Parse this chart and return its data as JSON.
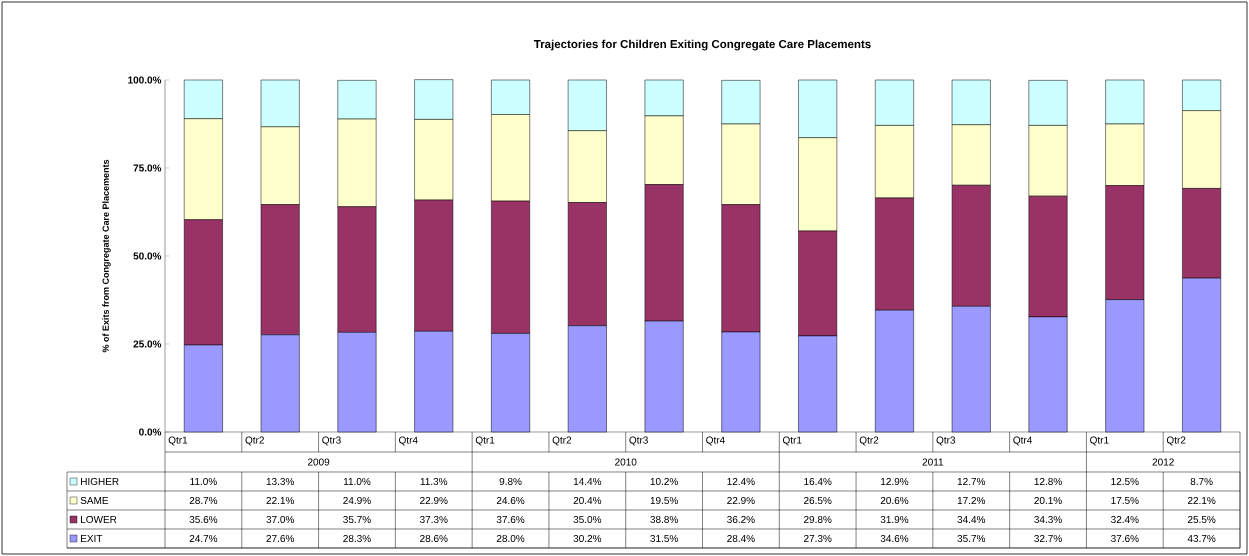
{
  "chart_data": {
    "type": "bar",
    "stacked": true,
    "title": "Trajectories for Children Exiting Congregate Care Placements",
    "ylabel": "% of Exits from Congregate Care Placements",
    "categories": [
      "Qtr1",
      "Qtr2",
      "Qtr3",
      "Qtr4",
      "Qtr1",
      "Qtr2",
      "Qtr3",
      "Qtr4",
      "Qtr1",
      "Qtr2",
      "Qtr3",
      "Qtr4",
      "Qtr1",
      "Qtr2"
    ],
    "annotations": [
      "2009",
      "2010",
      "2011",
      "2012"
    ],
    "ylim": [
      0,
      100
    ],
    "yticks": [
      {
        "value": 0,
        "label": "0.0%"
      },
      {
        "value": 25,
        "label": "25.0%"
      },
      {
        "value": 50,
        "label": "50.0%"
      },
      {
        "value": 75,
        "label": "75.0%"
      },
      {
        "value": 100,
        "label": "100.0%"
      }
    ],
    "legend": "bottom left",
    "series": [
      {
        "name": "EXIT",
        "color": "#9999ff",
        "values": [
          24.7,
          27.6,
          28.3,
          28.6,
          28.0,
          30.2,
          31.5,
          28.4,
          27.3,
          34.6,
          35.7,
          32.7,
          37.6,
          43.7
        ],
        "value_labels": [
          "24.7%",
          "27.6%",
          "28.3%",
          "28.6%",
          "28.0%",
          "30.2%",
          "31.5%",
          "28.4%",
          "27.3%",
          "34.6%",
          "35.7%",
          "32.7%",
          "37.6%",
          "43.7%"
        ]
      },
      {
        "name": "LOWER",
        "color": "#993366",
        "values": [
          35.6,
          37.0,
          35.7,
          37.3,
          37.6,
          35.0,
          38.8,
          36.2,
          29.8,
          31.9,
          34.4,
          34.3,
          32.4,
          25.5
        ],
        "value_labels": [
          "35.6%",
          "37.0%",
          "35.7%",
          "37.3%",
          "37.6%",
          "35.0%",
          "38.8%",
          "36.2%",
          "29.8%",
          "31.9%",
          "34.4%",
          "34.3%",
          "32.4%",
          "25.5%"
        ]
      },
      {
        "name": "SAME",
        "color": "#ffffcc",
        "values": [
          28.7,
          22.1,
          24.9,
          22.9,
          24.6,
          20.4,
          19.5,
          22.9,
          26.5,
          20.6,
          17.2,
          20.1,
          17.5,
          22.1
        ],
        "value_labels": [
          "28.7%",
          "22.1%",
          "24.9%",
          "22.9%",
          "24.6%",
          "20.4%",
          "19.5%",
          "22.9%",
          "26.5%",
          "20.6%",
          "17.2%",
          "20.1%",
          "17.5%",
          "22.1%"
        ]
      },
      {
        "name": "HIGHER",
        "color": "#ccffff",
        "values": [
          11.0,
          13.3,
          11.0,
          11.3,
          9.8,
          14.4,
          10.2,
          12.4,
          16.4,
          12.9,
          12.7,
          12.8,
          12.5,
          8.7
        ],
        "value_labels": [
          "11.0%",
          "13.3%",
          "11.0%",
          "11.3%",
          "9.8%",
          "14.4%",
          "10.2%",
          "12.4%",
          "16.4%",
          "12.9%",
          "12.7%",
          "12.8%",
          "12.5%",
          "8.7%"
        ]
      }
    ]
  }
}
